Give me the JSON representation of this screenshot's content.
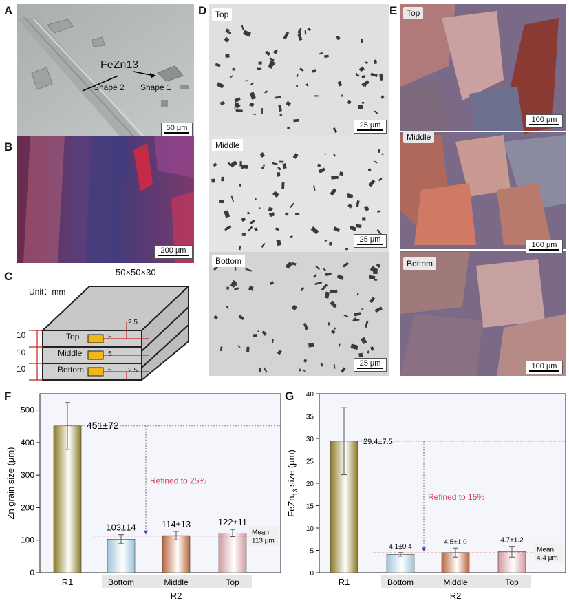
{
  "panels": {
    "A": {
      "label": "A",
      "phase": "FeZn13",
      "shape1": "Shape 1",
      "shape2": "Shape 2",
      "scale": "50 μm"
    },
    "B": {
      "label": "B",
      "scale": "200 μm"
    },
    "C": {
      "label": "C",
      "dims": "50×50×30",
      "unit": "Unit：mm",
      "layers": [
        "Top",
        "Middle",
        "Bottom"
      ],
      "layer_thickness": "10",
      "depth": "2.5",
      "width": "5"
    },
    "D": {
      "label": "D",
      "sections": [
        "Top",
        "Middle",
        "Bottom"
      ],
      "scale": "25 μm"
    },
    "E": {
      "label": "E",
      "sections": [
        "Top",
        "Middle",
        "Bottom"
      ],
      "scale": "100 μm"
    },
    "F": {
      "label": "F"
    },
    "G": {
      "label": "G"
    }
  },
  "chart_data": [
    {
      "type": "bar",
      "ylabel": "Zn grain size (μm)",
      "ylim": [
        0,
        550
      ],
      "yticks": [
        0,
        100,
        200,
        300,
        400,
        500
      ],
      "categories": [
        "R1",
        "Bottom",
        "Middle",
        "Top"
      ],
      "group_label": "R2",
      "values": [
        451,
        103,
        114,
        122
      ],
      "errors": [
        72,
        14,
        13,
        11
      ],
      "value_labels": [
        "451±72",
        "103±14",
        "114±13",
        "122±11"
      ],
      "mean_value": 113,
      "mean_label": [
        "Mean",
        "113 μm"
      ],
      "annotation": "Refined to 25%",
      "bar_colors": [
        "#8a7a28",
        "#9ec4dc",
        "#b8663e",
        "#d29a9c"
      ]
    },
    {
      "type": "bar",
      "ylabel_main": "FeZn",
      "ylabel_sub": "13",
      "ylabel_rest": " size (μm)",
      "ylim": [
        0,
        40
      ],
      "yticks": [
        0,
        5,
        10,
        15,
        20,
        25,
        30,
        35,
        40
      ],
      "categories": [
        "R1",
        "Bottom",
        "Middle",
        "Top"
      ],
      "group_label": "R2",
      "values": [
        29.4,
        4.1,
        4.5,
        4.7
      ],
      "errors": [
        7.5,
        0.4,
        1.0,
        1.2
      ],
      "value_labels": [
        "29.4±7.5",
        "4.1±0.4",
        "4.5±1.0",
        "4.7±1.2"
      ],
      "mean_value": 4.4,
      "mean_label": [
        "Mean",
        "4.4 μm"
      ],
      "annotation": "Refined to 15%",
      "bar_colors": [
        "#8a7a28",
        "#9ec4dc",
        "#b8663e",
        "#d29a9c"
      ]
    }
  ]
}
